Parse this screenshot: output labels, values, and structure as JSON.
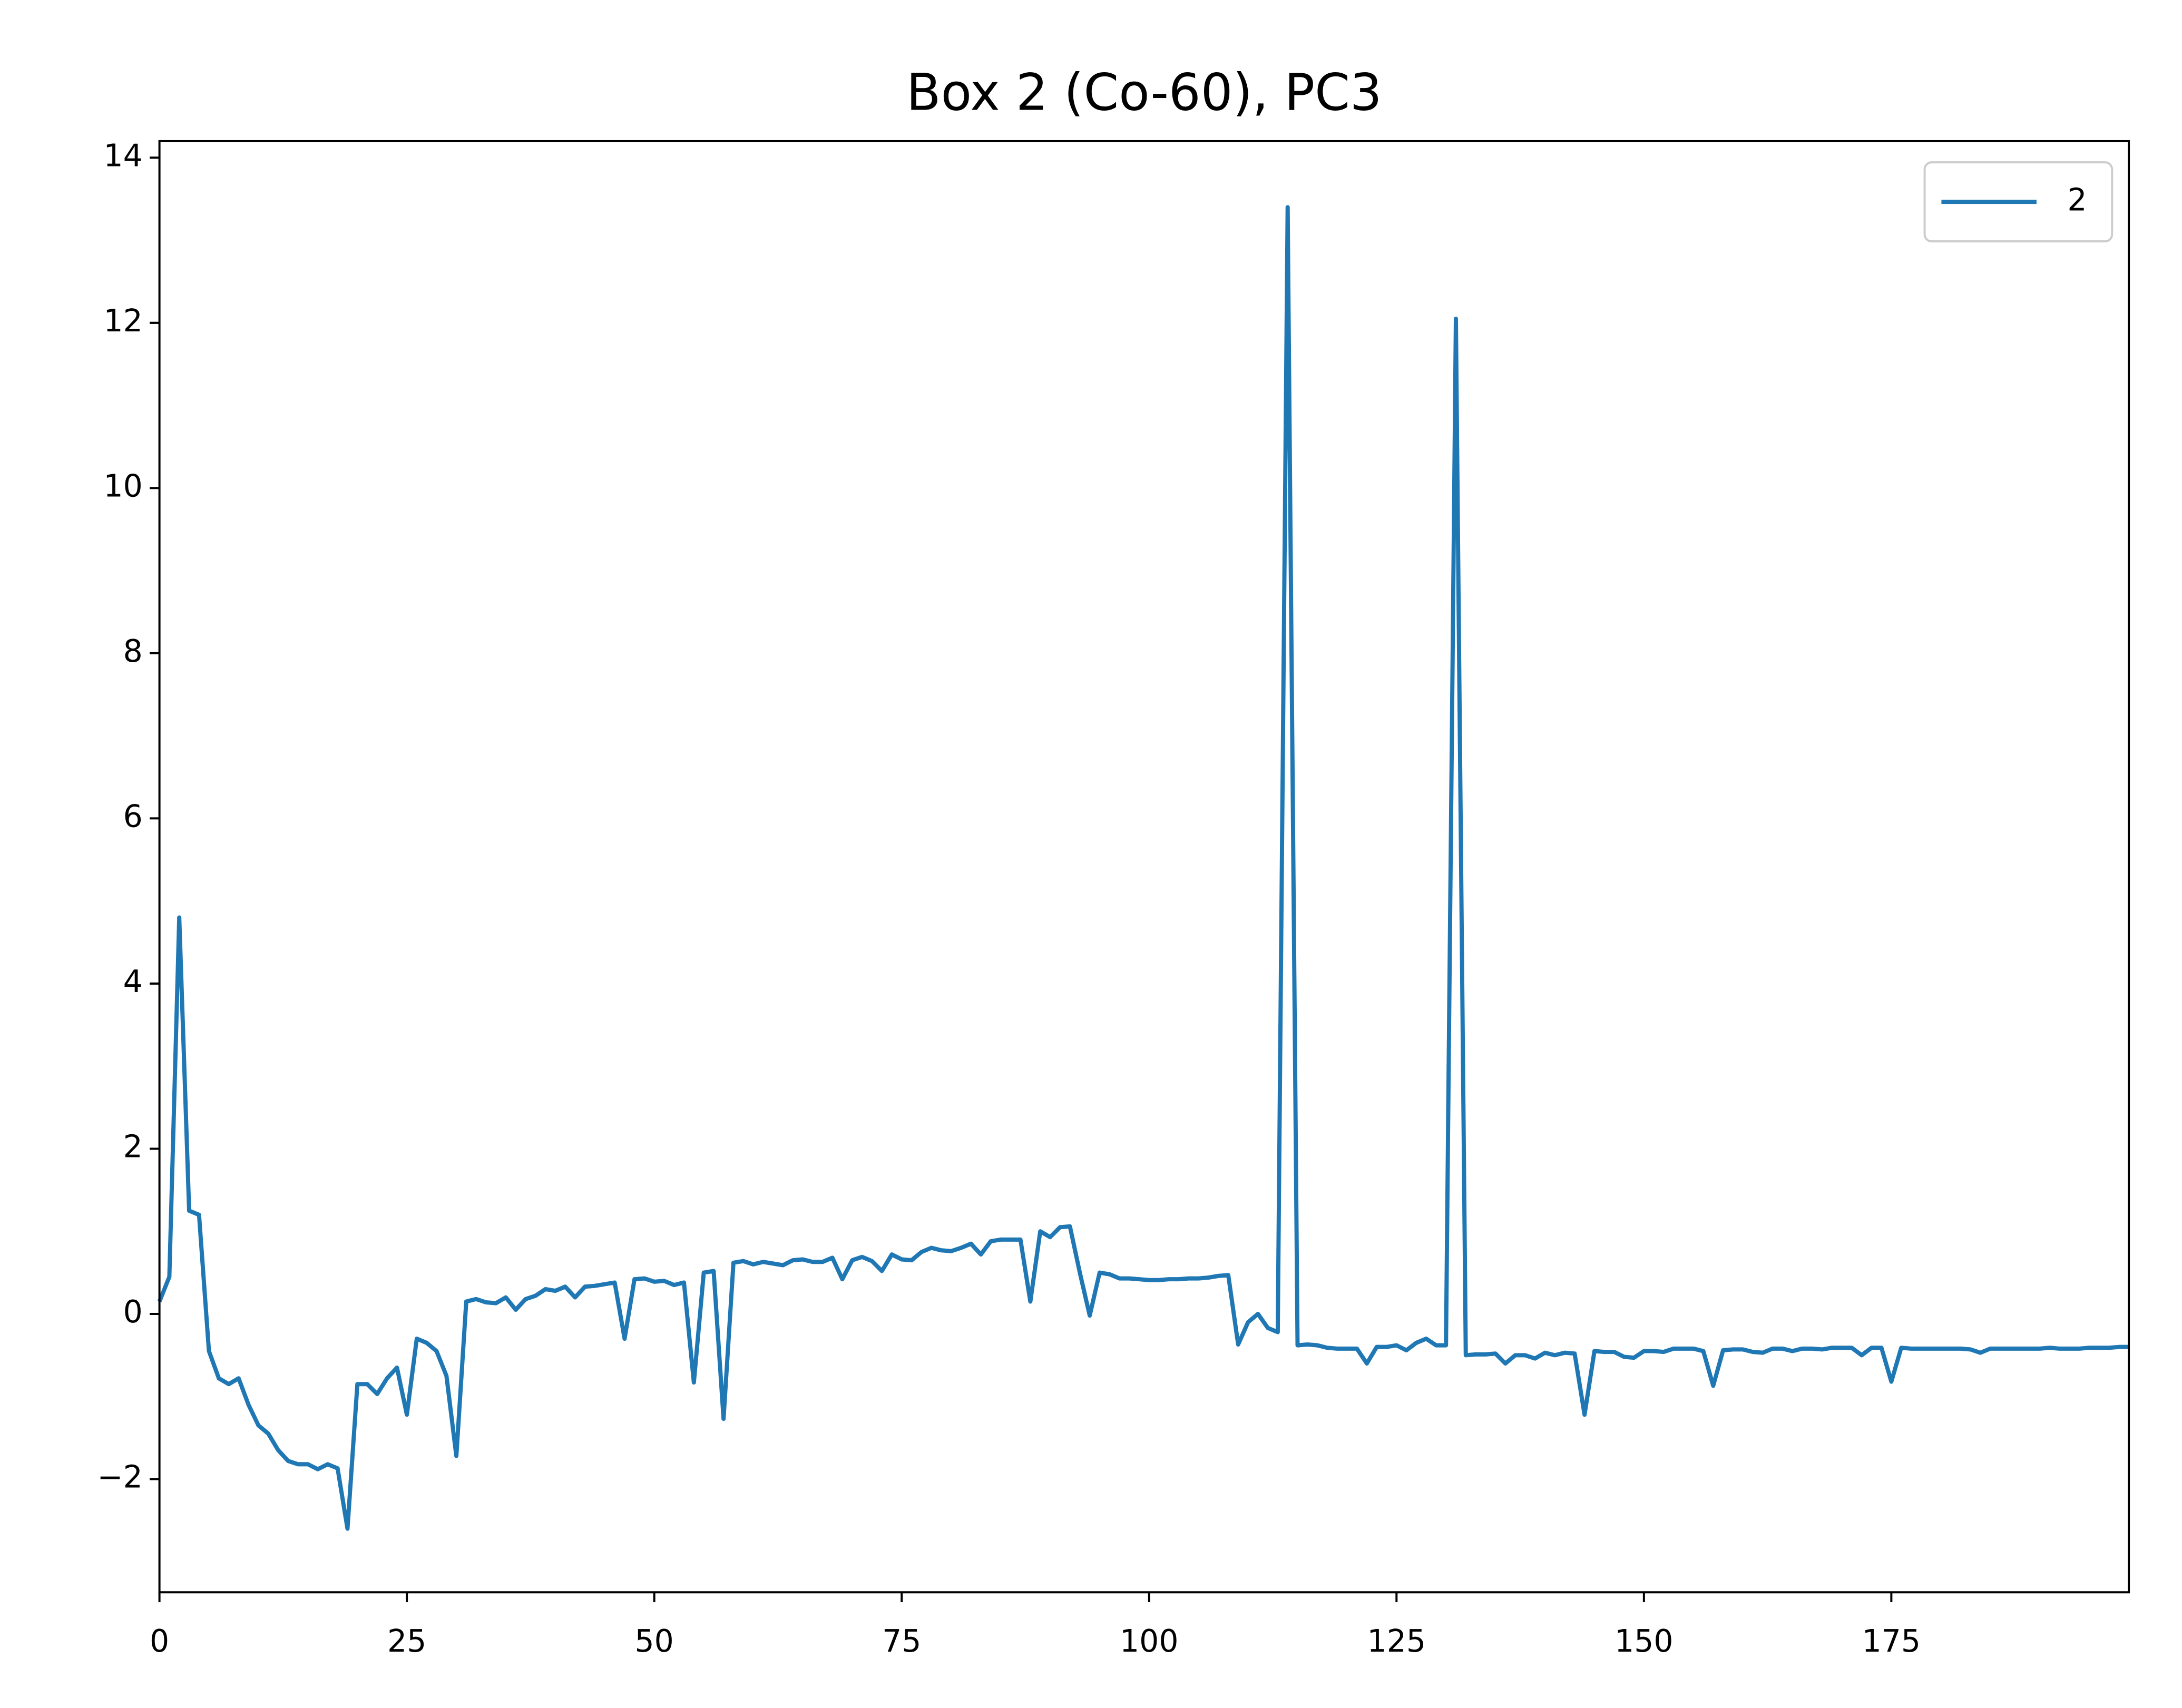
{
  "chart_data": {
    "type": "line",
    "title": "Box 2 (Co-60), PC3",
    "x": [
      0,
      1,
      2,
      3,
      4,
      5,
      6,
      7,
      8,
      9,
      10,
      11,
      12,
      13,
      14,
      15,
      16,
      17,
      18,
      19,
      20,
      21,
      22,
      23,
      24,
      25,
      26,
      27,
      28,
      29,
      30,
      31,
      32,
      33,
      34,
      35,
      36,
      37,
      38,
      39,
      40,
      41,
      42,
      43,
      44,
      45,
      46,
      47,
      48,
      49,
      50,
      51,
      52,
      53,
      54,
      55,
      56,
      57,
      58,
      59,
      60,
      61,
      62,
      63,
      64,
      65,
      66,
      67,
      68,
      69,
      70,
      71,
      72,
      73,
      74,
      75,
      76,
      77,
      78,
      79,
      80,
      81,
      82,
      83,
      84,
      85,
      86,
      87,
      88,
      89,
      90,
      91,
      92,
      93,
      94,
      95,
      96,
      97,
      98,
      99,
      100,
      101,
      102,
      103,
      104,
      105,
      106,
      107,
      108,
      109,
      110,
      111,
      112,
      113,
      114,
      115,
      116,
      117,
      118,
      119,
      120,
      121,
      122,
      123,
      124,
      125,
      126,
      127,
      128,
      129,
      130,
      131,
      132,
      133,
      134,
      135,
      136,
      137,
      138,
      139,
      140,
      141,
      142,
      143,
      144,
      145,
      146,
      147,
      148,
      149,
      150,
      151,
      152,
      153,
      154,
      155,
      156,
      157,
      158,
      159,
      160,
      161,
      162,
      163,
      164,
      165,
      166,
      167,
      168,
      169,
      170,
      171,
      172,
      173,
      174,
      175,
      176,
      177,
      178,
      179,
      180,
      181,
      182,
      183,
      184,
      185,
      186,
      187,
      188,
      189,
      190,
      191,
      192,
      193,
      194,
      195,
      196,
      197,
      198,
      199
    ],
    "series": [
      {
        "name": "2",
        "color": "#1f77b4",
        "values": [
          0.15,
          0.45,
          4.8,
          1.25,
          1.2,
          -0.45,
          -0.78,
          -0.85,
          -0.78,
          -1.1,
          -1.35,
          -1.45,
          -1.65,
          -1.78,
          -1.82,
          -1.82,
          -1.88,
          -1.82,
          -1.87,
          -2.6,
          -0.85,
          -0.85,
          -0.97,
          -0.78,
          -0.65,
          -1.22,
          -0.3,
          -0.35,
          -0.45,
          -0.75,
          -1.72,
          0.15,
          0.18,
          0.14,
          0.13,
          0.2,
          0.05,
          0.18,
          0.22,
          0.3,
          0.28,
          0.33,
          0.2,
          0.33,
          0.34,
          0.36,
          0.38,
          -0.3,
          0.42,
          0.43,
          0.39,
          0.4,
          0.35,
          0.38,
          -0.83,
          0.5,
          0.52,
          -1.27,
          0.62,
          0.64,
          0.6,
          0.63,
          0.61,
          0.59,
          0.65,
          0.66,
          0.63,
          0.63,
          0.68,
          0.42,
          0.65,
          0.69,
          0.64,
          0.52,
          0.72,
          0.66,
          0.65,
          0.75,
          0.8,
          0.77,
          0.76,
          0.8,
          0.85,
          0.72,
          0.88,
          0.9,
          0.9,
          0.9,
          0.15,
          1.0,
          0.93,
          1.05,
          1.06,
          0.5,
          -0.02,
          0.5,
          0.48,
          0.43,
          0.43,
          0.42,
          0.41,
          0.41,
          0.42,
          0.42,
          0.43,
          0.43,
          0.44,
          0.46,
          0.47,
          -0.37,
          -0.1,
          0.0,
          -0.17,
          -0.22,
          13.4,
          -0.38,
          -0.37,
          -0.38,
          -0.41,
          -0.42,
          -0.42,
          -0.42,
          -0.6,
          -0.4,
          -0.4,
          -0.38,
          -0.44,
          -0.35,
          -0.3,
          -0.38,
          -0.38,
          12.05,
          -0.5,
          -0.49,
          -0.49,
          -0.48,
          -0.6,
          -0.5,
          -0.5,
          -0.54,
          -0.47,
          -0.5,
          -0.47,
          -0.48,
          -1.22,
          -0.45,
          -0.46,
          -0.46,
          -0.52,
          -0.53,
          -0.45,
          -0.45,
          -0.46,
          -0.42,
          -0.42,
          -0.42,
          -0.45,
          -0.87,
          -0.44,
          -0.43,
          -0.43,
          -0.46,
          -0.47,
          -0.42,
          -0.42,
          -0.45,
          -0.42,
          -0.42,
          -0.43,
          -0.41,
          -0.41,
          -0.41,
          -0.5,
          -0.41,
          -0.41,
          -0.82,
          -0.41,
          -0.42,
          -0.42,
          -0.42,
          -0.42,
          -0.42,
          -0.42,
          -0.43,
          -0.47,
          -0.42,
          -0.42,
          -0.42,
          -0.42,
          -0.42,
          -0.42,
          -0.41,
          -0.42,
          -0.42,
          -0.42,
          -0.41,
          -0.41,
          -0.41,
          -0.4,
          -0.4
        ]
      }
    ],
    "xlim": [
      0,
      199
    ],
    "ylim": [
      -3.37,
      14.2
    ],
    "xticks": [
      0,
      25,
      50,
      75,
      100,
      125,
      150,
      175
    ],
    "yticks": [
      {
        "value": -2,
        "label": "−2"
      },
      0,
      2,
      4,
      6,
      8,
      10,
      12,
      14
    ],
    "legend": "upper right"
  }
}
